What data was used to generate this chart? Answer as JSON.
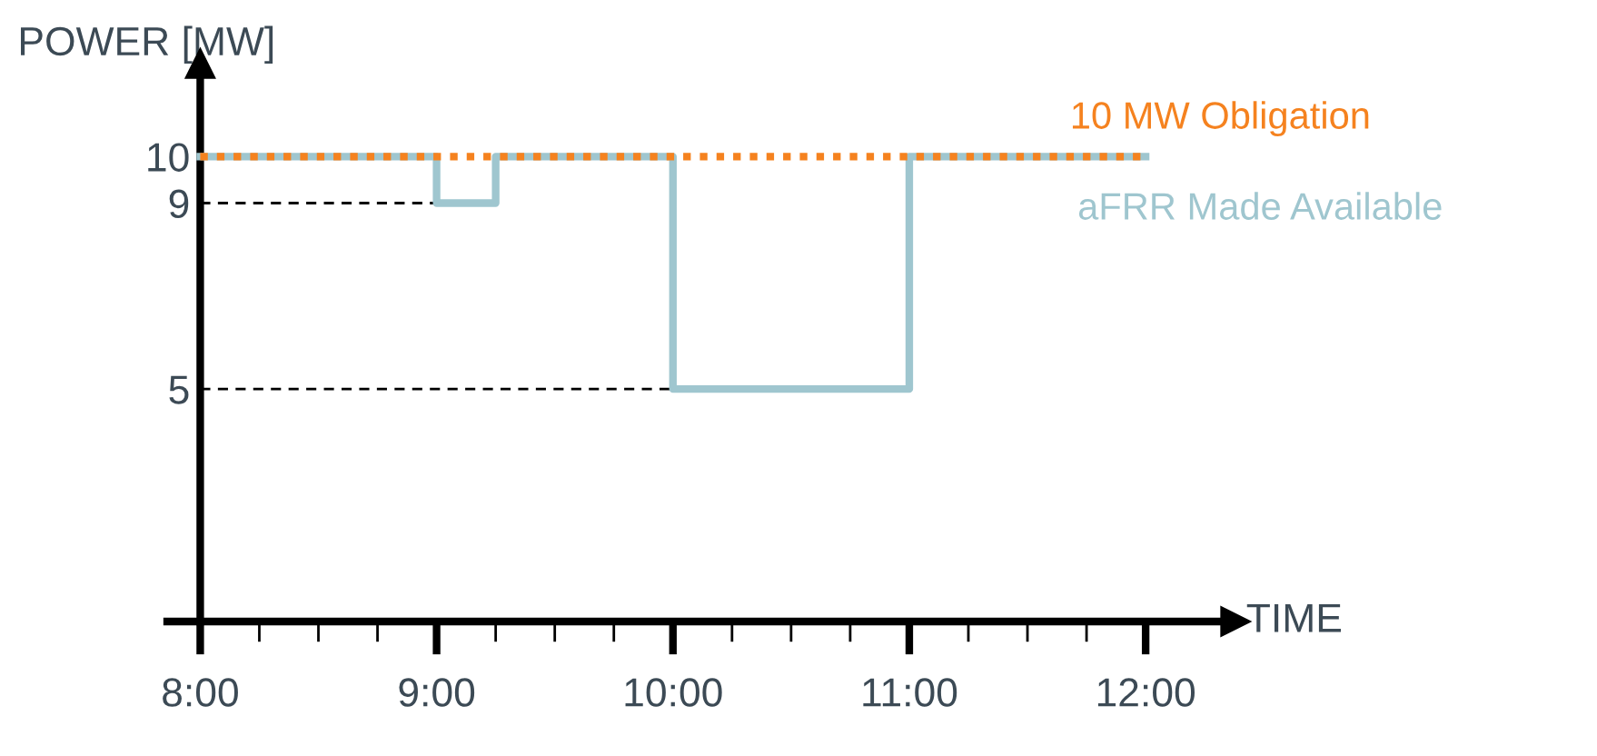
{
  "chart_data": {
    "type": "step",
    "xlabel": "TIME",
    "ylabel": "POWER [MW]",
    "xlim": [
      7.86,
      12.38
    ],
    "ylim": [
      0,
      12
    ],
    "xticks": [
      {
        "value": 8,
        "label": "8:00"
      },
      {
        "value": 8.25,
        "label": null
      },
      {
        "value": 8.5,
        "label": null
      },
      {
        "value": 8.75,
        "label": null
      },
      {
        "value": 9,
        "label": "9:00"
      },
      {
        "value": 9.25,
        "label": null
      },
      {
        "value": 9.5,
        "label": null
      },
      {
        "value": 9.75,
        "label": null
      },
      {
        "value": 10,
        "label": "10:00"
      },
      {
        "value": 10.25,
        "label": null
      },
      {
        "value": 10.5,
        "label": null
      },
      {
        "value": 10.75,
        "label": null
      },
      {
        "value": 11,
        "label": "11:00"
      },
      {
        "value": 11.25,
        "label": null
      },
      {
        "value": 11.5,
        "label": null
      },
      {
        "value": 11.75,
        "label": null
      },
      {
        "value": 12,
        "label": "12:00"
      }
    ],
    "yticks": [
      5,
      9,
      10
    ],
    "series": [
      {
        "name": "aFRR Made Available",
        "color": "#9fc6cf",
        "line_style": "solid",
        "x": [
          8,
          9,
          9.25,
          10,
          11,
          12
        ],
        "values": [
          10,
          9,
          10,
          5,
          10,
          10
        ]
      },
      {
        "name": "10 MW Obligation",
        "type": "line",
        "color": "#f5821f",
        "line_style": "dotted",
        "x": [
          8,
          12
        ],
        "values": [
          10,
          10
        ]
      }
    ],
    "ref_lines": [
      {
        "axis": "y",
        "value": 9,
        "color": "#000000",
        "line_style": "dashed"
      },
      {
        "axis": "y",
        "value": 5,
        "color": "#000000",
        "line_style": "dashed"
      }
    ],
    "legend": false,
    "grid": false
  }
}
